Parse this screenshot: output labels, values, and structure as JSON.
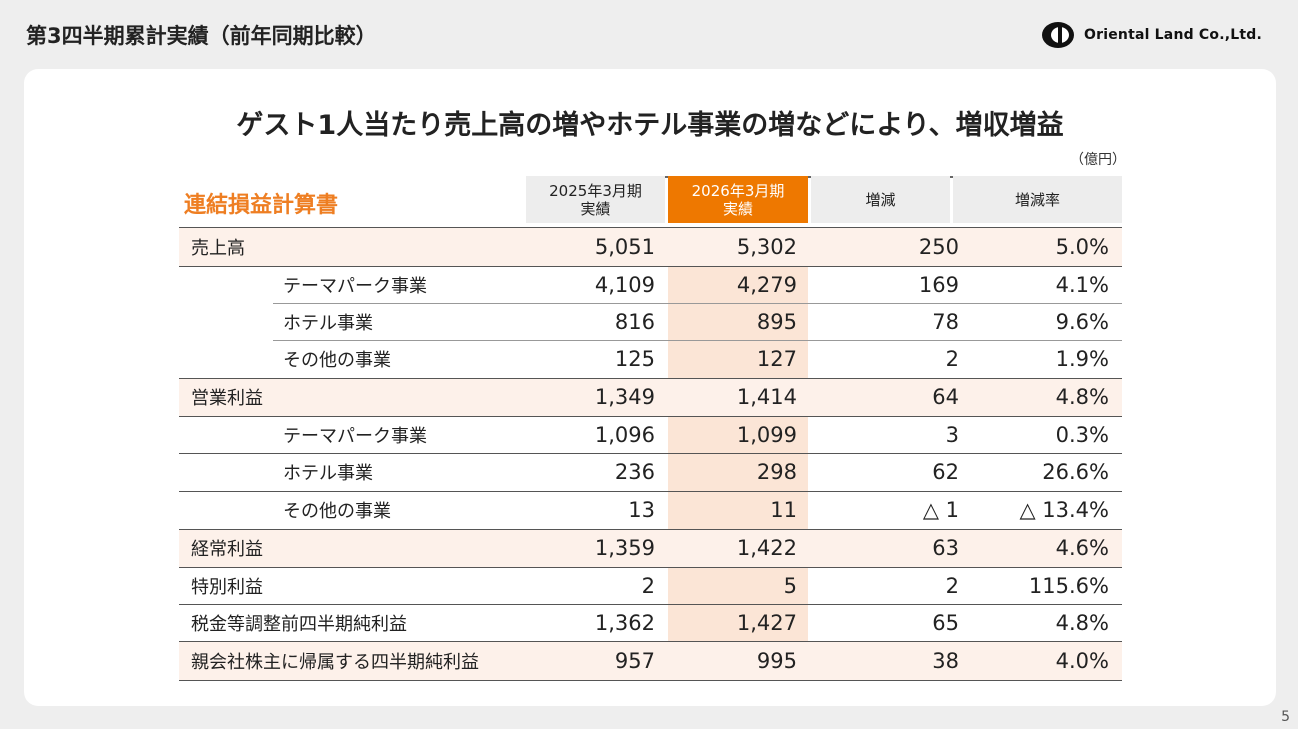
{
  "header": {
    "title": "第3四半期累計実績（前年同期比較）"
  },
  "logo": {
    "text": "Oriental Land Co.,Ltd."
  },
  "headline": "ゲスト1人当たり売上高の増やホテル事業の増などにより、増収増益",
  "unit": "（億円）",
  "statement_title": "連結損益計算書",
  "columns": [
    {
      "line1": "2025年3月期",
      "line2": "実績"
    },
    {
      "line1": "2026年3月期",
      "line2": "実績"
    },
    {
      "line1": "増減",
      "line2": ""
    },
    {
      "line1": "増減率",
      "line2": ""
    }
  ],
  "rows": [
    {
      "label": "売上高",
      "v1": "5,051",
      "v2": "5,302",
      "v3": "250",
      "v4": "5.0%"
    },
    {
      "label": "テーマパーク事業",
      "v1": "4,109",
      "v2": "4,279",
      "v3": "169",
      "v4": "4.1%"
    },
    {
      "label": "ホテル事業",
      "v1": "816",
      "v2": "895",
      "v3": "78",
      "v4": "9.6%"
    },
    {
      "label": "その他の事業",
      "v1": "125",
      "v2": "127",
      "v3": "2",
      "v4": "1.9%"
    },
    {
      "label": "営業利益",
      "v1": "1,349",
      "v2": "1,414",
      "v3": "64",
      "v4": "4.8%"
    },
    {
      "label": "テーマパーク事業",
      "v1": "1,096",
      "v2": "1,099",
      "v3": "3",
      "v4": "0.3%"
    },
    {
      "label": "ホテル事業",
      "v1": "236",
      "v2": "298",
      "v3": "62",
      "v4": "26.6%"
    },
    {
      "label": "その他の事業",
      "v1": "13",
      "v2": "11",
      "v3": "△ 1",
      "v4": "△ 13.4%"
    },
    {
      "label": "経常利益",
      "v1": "1,359",
      "v2": "1,422",
      "v3": "63",
      "v4": "4.6%"
    },
    {
      "label": "特別利益",
      "v1": "2",
      "v2": "5",
      "v3": "2",
      "v4": "115.6%"
    },
    {
      "label": "税金等調整前四半期純利益",
      "v1": "1,362",
      "v2": "1,427",
      "v3": "65",
      "v4": "4.8%"
    },
    {
      "label": "親会社株主に帰属する四半期純利益",
      "v1": "957",
      "v2": "995",
      "v3": "38",
      "v4": "4.0%"
    }
  ],
  "page_number": "5",
  "colors": {
    "accent": "#ee7800",
    "highlight": "#fbe5d6",
    "row_shade": "#fdf1ea"
  }
}
